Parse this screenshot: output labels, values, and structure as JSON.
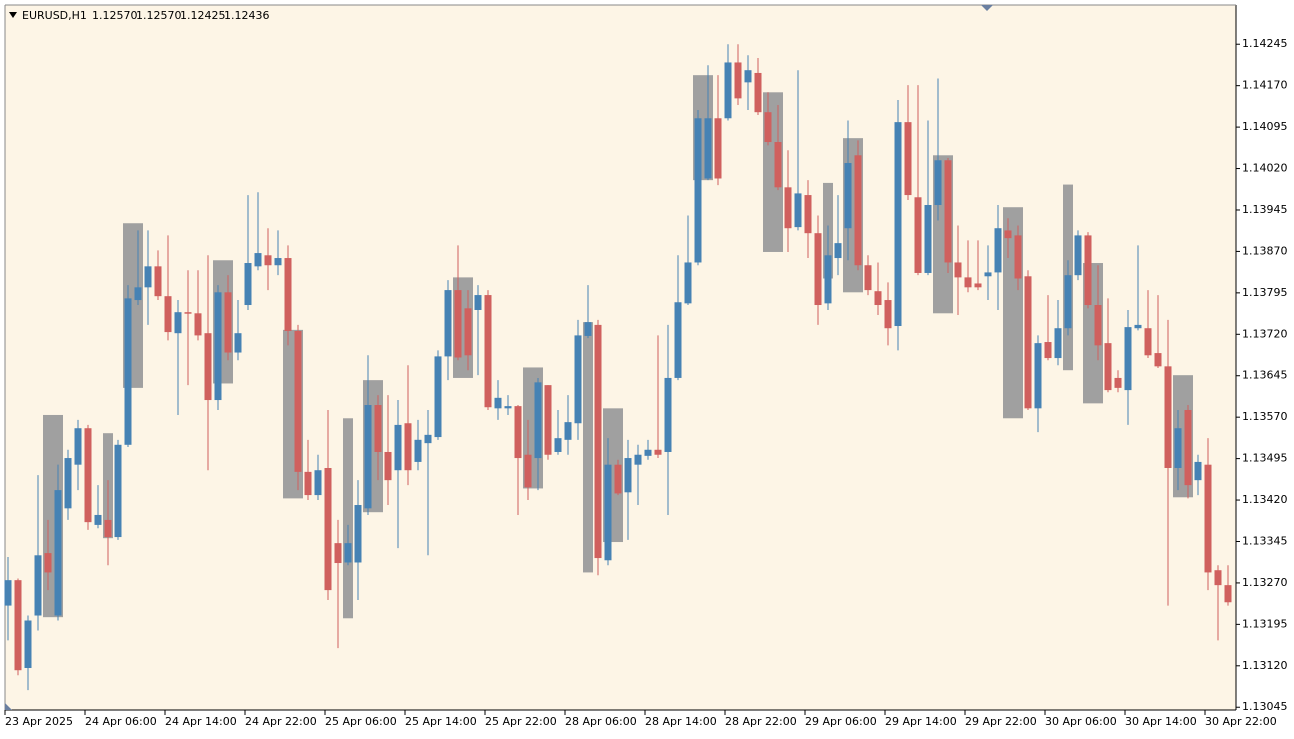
{
  "chart_data": {
    "type": "candlestick",
    "title": "EURUSD,H1",
    "title_values": [
      "1.12570",
      "1.12570",
      "1.12425",
      "1.12436"
    ],
    "up_color": "#4682b4",
    "down_color": "#d0605e",
    "categories": [
      "23 Apr 2025",
      null,
      null,
      null,
      null,
      null,
      null,
      null,
      "24 Apr 06:00",
      null,
      null,
      null,
      null,
      null,
      null,
      null,
      "24 Apr 14:00",
      null,
      null,
      null,
      null,
      null,
      null,
      null,
      "24 Apr 22:00",
      null,
      null,
      null,
      null,
      null,
      null,
      null,
      "25 Apr 06:00",
      null,
      null,
      null,
      null,
      null,
      null,
      null,
      "25 Apr 14:00",
      null,
      null,
      null,
      null,
      null,
      null,
      null,
      "25 Apr 22:00",
      null,
      null,
      null,
      null,
      null,
      null,
      null,
      "28 Apr 06:00",
      null,
      null,
      null,
      null,
      null,
      null,
      null,
      "28 Apr 14:00",
      null,
      null,
      null,
      null,
      null,
      null,
      null,
      "28 Apr 22:00",
      null,
      null,
      null,
      null,
      null,
      null,
      null,
      "29 Apr 06:00",
      null,
      null,
      null,
      null,
      null,
      null,
      null,
      "29 Apr 14:00",
      null,
      null,
      null,
      null,
      null,
      null,
      null,
      "29 Apr 22:00",
      null,
      null,
      null,
      null,
      null,
      null,
      null,
      "30 Apr 06:00",
      null,
      null,
      null,
      null,
      null,
      null,
      null,
      "30 Apr 14:00",
      null,
      null,
      null,
      null,
      null,
      null,
      null,
      "30 Apr 22:00",
      null,
      null
    ],
    "open": [
      1.13229,
      1.13275,
      1.13116,
      1.13211,
      1.13324,
      1.13211,
      1.13405,
      1.13484,
      1.1355,
      1.13375,
      1.13384,
      1.13353,
      1.1352,
      1.13782,
      1.13805,
      1.13843,
      1.13789,
      1.13722,
      1.1376,
      1.13758,
      1.13722,
      1.13601,
      1.13796,
      1.13687,
      1.13773,
      1.13843,
      1.13863,
      1.13845,
      1.13858,
      1.13726,
      1.13471,
      1.13429,
      1.13478,
      1.13342,
      1.13307,
      1.13307,
      1.13405,
      1.13592,
      1.13507,
      1.13474,
      1.13559,
      1.13489,
      1.13523,
      1.13534,
      1.1368,
      1.138,
      1.13767,
      1.13764,
      1.13791,
      1.13586,
      1.13586,
      1.1359,
      1.13502,
      1.13496,
      1.13628,
      1.13507,
      1.13529,
      1.13559,
      1.13717,
      1.13737,
      1.13311,
      1.13484,
      1.13434,
      1.13484,
      1.135,
      1.13511,
      1.13507,
      1.13641,
      1.13776,
      1.1385,
      1.14002,
      1.14111,
      1.14111,
      1.14212,
      1.14176,
      1.14193,
      1.14122,
      1.14068,
      1.13986,
      1.13914,
      1.13972,
      1.13903,
      1.13776,
      1.13858,
      1.13912,
      1.14044,
      1.13845,
      1.13798,
      1.13782,
      1.13735,
      1.14104,
      1.13968,
      1.13831,
      1.13954,
      1.14035,
      1.1385,
      1.13823,
      1.13812,
      1.13825,
      1.13832,
      1.13908,
      1.13899,
      1.13825,
      1.13586,
      1.13706,
      1.13677,
      1.13731,
      1.13827,
      1.13899,
      1.13773,
      1.13704,
      1.13641,
      1.13619,
      1.13731,
      1.13731,
      1.13686,
      1.13662,
      1.13478,
      1.13583,
      1.13456,
      1.13484,
      1.13293,
      1.13266
    ],
    "high": [
      1.13317,
      1.13278,
      1.13211,
      1.13465,
      1.13384,
      1.13484,
      1.13511,
      1.13565,
      1.13556,
      1.13447,
      1.13456,
      1.13529,
      1.13809,
      1.13908,
      1.13908,
      1.13872,
      1.13899,
      1.13782,
      1.13836,
      1.13836,
      1.13863,
      1.13809,
      1.13827,
      1.13782,
      1.13972,
      1.13977,
      1.13912,
      1.13908,
      1.13881,
      1.13737,
      1.13529,
      1.13502,
      1.13583,
      1.13384,
      1.13375,
      1.13456,
      1.13682,
      1.1361,
      1.1361,
      1.13601,
      1.13664,
      1.13565,
      1.13583,
      1.13691,
      1.13818,
      1.13881,
      1.138,
      1.13809,
      1.138,
      1.13637,
      1.1361,
      1.13592,
      1.13565,
      1.13641,
      1.13628,
      1.13583,
      1.1361,
      1.13746,
      1.13809,
      1.13746,
      1.13532,
      1.13493,
      1.13529,
      1.1352,
      1.13529,
      1.13718,
      1.13737,
      1.13863,
      1.13935,
      1.14126,
      1.14207,
      1.14189,
      1.14245,
      1.14245,
      1.14225,
      1.1422,
      1.14158,
      1.14135,
      1.14053,
      1.14198,
      1.13999,
      1.13935,
      1.13917,
      1.13972,
      1.14107,
      1.14071,
      1.13863,
      1.1385,
      1.13814,
      1.14144,
      1.14171,
      1.14171,
      1.14107,
      1.14183,
      1.14039,
      1.13917,
      1.1389,
      1.1389,
      1.13881,
      1.13954,
      1.1393,
      1.13917,
      1.13836,
      1.13718,
      1.13791,
      1.13782,
      1.13854,
      1.13908,
      1.13905,
      1.13845,
      1.13785,
      1.13655,
      1.13764,
      1.13881,
      1.138,
      1.13791,
      1.13746,
      1.13583,
      1.13592,
      1.13502,
      1.13532,
      1.13302,
      1.13302
    ],
    "low": [
      1.13166,
      1.13103,
      1.13076,
      1.13184,
      1.13257,
      1.13202,
      1.13384,
      1.13438,
      1.13366,
      1.13369,
      1.13302,
      1.13348,
      1.13516,
      1.13773,
      1.13737,
      1.13782,
      1.13709,
      1.13574,
      1.13628,
      1.13709,
      1.13474,
      1.13583,
      1.13673,
      1.13673,
      1.13764,
      1.13836,
      1.138,
      1.13827,
      1.137,
      1.13438,
      1.1342,
      1.1342,
      1.13239,
      1.13152,
      1.13302,
      1.13239,
      1.13393,
      1.13456,
      1.13411,
      1.13333,
      1.13447,
      1.13474,
      1.1332,
      1.13529,
      1.13637,
      1.13673,
      1.13655,
      1.13646,
      1.13583,
      1.13565,
      1.13574,
      1.13393,
      1.1342,
      1.13438,
      1.13493,
      1.13502,
      1.13502,
      1.13529,
      1.13713,
      1.13284,
      1.13302,
      1.13429,
      1.13348,
      1.13411,
      1.13493,
      1.13496,
      1.13393,
      1.13637,
      1.13773,
      1.13845,
      1.13999,
      1.1399,
      1.14107,
      1.14135,
      1.14126,
      1.14117,
      1.14062,
      1.13981,
      1.13869,
      1.13908,
      1.13858,
      1.13737,
      1.13764,
      1.13827,
      1.13854,
      1.13836,
      1.13791,
      1.13755,
      1.137,
      1.13691,
      1.13963,
      1.13827,
      1.13827,
      1.13926,
      1.13831,
      1.13755,
      1.13796,
      1.138,
      1.13782,
      1.13764,
      1.13858,
      1.138,
      1.13583,
      1.13543,
      1.13673,
      1.13664,
      1.13718,
      1.13818,
      1.13767,
      1.13673,
      1.13615,
      1.13615,
      1.13556,
      1.13727,
      1.13677,
      1.13659,
      1.13229,
      1.13438,
      1.13423,
      1.13429,
      1.13257,
      1.13166,
      1.13229
    ],
    "close": [
      1.13275,
      1.13112,
      1.13202,
      1.1332,
      1.13289,
      1.13438,
      1.13496,
      1.1355,
      1.1338,
      1.13393,
      1.13353,
      1.1352,
      1.13785,
      1.13805,
      1.13843,
      1.13789,
      1.13724,
      1.1376,
      1.13758,
      1.13718,
      1.13601,
      1.13796,
      1.13687,
      1.13722,
      1.13849,
      1.13867,
      1.13845,
      1.13858,
      1.13726,
      1.13471,
      1.13429,
      1.13474,
      1.13257,
      1.13306,
      1.13342,
      1.13411,
      1.13592,
      1.13507,
      1.13456,
      1.13556,
      1.13474,
      1.13529,
      1.13538,
      1.1368,
      1.138,
      1.13678,
      1.13682,
      1.13791,
      1.13588,
      1.13605,
      1.1359,
      1.13496,
      1.13443,
      1.13633,
      1.13502,
      1.13532,
      1.13561,
      1.13718,
      1.13742,
      1.13315,
      1.13484,
      1.13432,
      1.13496,
      1.13502,
      1.13511,
      1.13502,
      1.13641,
      1.13778,
      1.1385,
      1.14111,
      1.14111,
      1.14002,
      1.14212,
      1.14147,
      1.14198,
      1.14122,
      1.14068,
      1.13986,
      1.13912,
      1.13975,
      1.13903,
      1.13773,
      1.13863,
      1.13885,
      1.1403,
      1.13845,
      1.138,
      1.13773,
      1.13731,
      1.14104,
      1.13972,
      1.13831,
      1.13954,
      1.14035,
      1.1385,
      1.13823,
      1.13805,
      1.13805,
      1.13832,
      1.13912,
      1.13894,
      1.13821,
      1.13586,
      1.13704,
      1.13677,
      1.13731,
      1.13827,
      1.13899,
      1.13773,
      1.137,
      1.13619,
      1.13623,
      1.13733,
      1.13737,
      1.13682,
      1.13662,
      1.13478,
      1.1355,
      1.13447,
      1.13489,
      1.13289,
      1.13266,
      1.13235
    ],
    "overlay": {
      "color": "#a0a0a0",
      "start": [
        4,
        10,
        12,
        21,
        28,
        34,
        36,
        45,
        52,
        58,
        60,
        69,
        76,
        82,
        84,
        93,
        100,
        106,
        108,
        117
      ],
      "end": [
        5,
        10,
        13,
        22,
        29,
        34,
        37,
        46,
        53,
        58,
        61,
        70,
        77,
        82,
        85,
        94,
        101,
        106,
        109,
        118
      ],
      "top": [
        1.13574,
        1.13541,
        1.13921,
        1.13854,
        1.13728,
        1.13568,
        1.13637,
        1.13823,
        1.1366,
        1.13742,
        1.13586,
        1.14189,
        1.14158,
        1.13994,
        1.14075,
        1.14044,
        1.1395,
        1.13991,
        1.13849,
        1.13646
      ],
      "bottom": [
        1.13208,
        1.13351,
        1.13623,
        1.13631,
        1.13423,
        1.13206,
        1.13398,
        1.13641,
        1.13441,
        1.13289,
        1.13344,
        1.13999,
        1.13869,
        1.13821,
        1.13796,
        1.13758,
        1.13568,
        1.13655,
        1.13595,
        1.13425
      ]
    },
    "ylim": [
      1.1304,
      1.14316
    ],
    "yticks": [
      1.14245,
      {
        "value": 1.1417,
        "label": "1.14170"
      },
      1.14095,
      {
        "value": 1.1402,
        "label": "1.14020"
      },
      1.13945,
      {
        "value": 1.1387,
        "label": "1.13870"
      },
      1.13795,
      {
        "value": 1.1372,
        "label": "1.13720"
      },
      1.13645,
      {
        "value": 1.1357,
        "label": "1.13570"
      },
      1.13495,
      {
        "value": 1.1342,
        "label": "1.13420"
      },
      1.13345,
      {
        "value": 1.1327,
        "label": "1.13270"
      },
      1.13195,
      {
        "value": 1.1312,
        "label": "1.13120"
      },
      1.13045
    ]
  }
}
